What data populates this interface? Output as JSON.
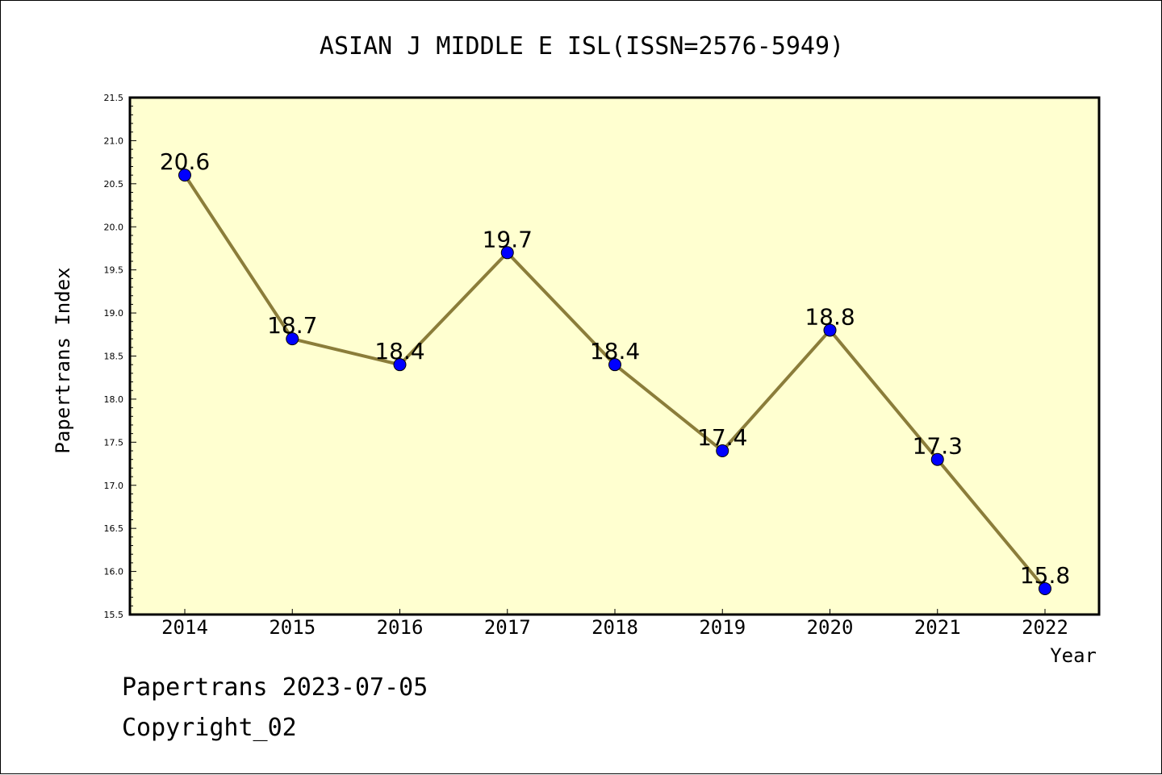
{
  "chart_data": {
    "type": "line",
    "title": "ASIAN J MIDDLE E ISL(ISSN=2576-5949)",
    "xlabel": "Year",
    "ylabel": "Papertrans Index",
    "categories": [
      "2014",
      "2015",
      "2016",
      "2017",
      "2018",
      "2019",
      "2020",
      "2021",
      "2022"
    ],
    "series": [
      {
        "values": [
          20.6,
          18.7,
          18.4,
          19.7,
          18.4,
          17.4,
          18.8,
          17.3,
          15.8
        ],
        "labels": [
          "20.6",
          "18.7",
          "18.4",
          "19.7",
          "18.4",
          "17.4",
          "18.8",
          "17.3",
          "15.8"
        ]
      }
    ],
    "ylim": [
      15.5,
      21.5
    ],
    "yticks": [
      "15.5",
      "16.0",
      "16.5",
      "17.0",
      "17.5",
      "18.0",
      "18.5",
      "19.0",
      "19.5",
      "20.0",
      "20.5",
      "21.0",
      "21.5"
    ],
    "grid": false,
    "colors": {
      "plot_background": "#ffffd0",
      "line": "#8b7d3a",
      "marker": "#0000ff"
    }
  },
  "footer": {
    "source": "Papertrans 2023-07-05",
    "copyright": "Copyright_02"
  }
}
